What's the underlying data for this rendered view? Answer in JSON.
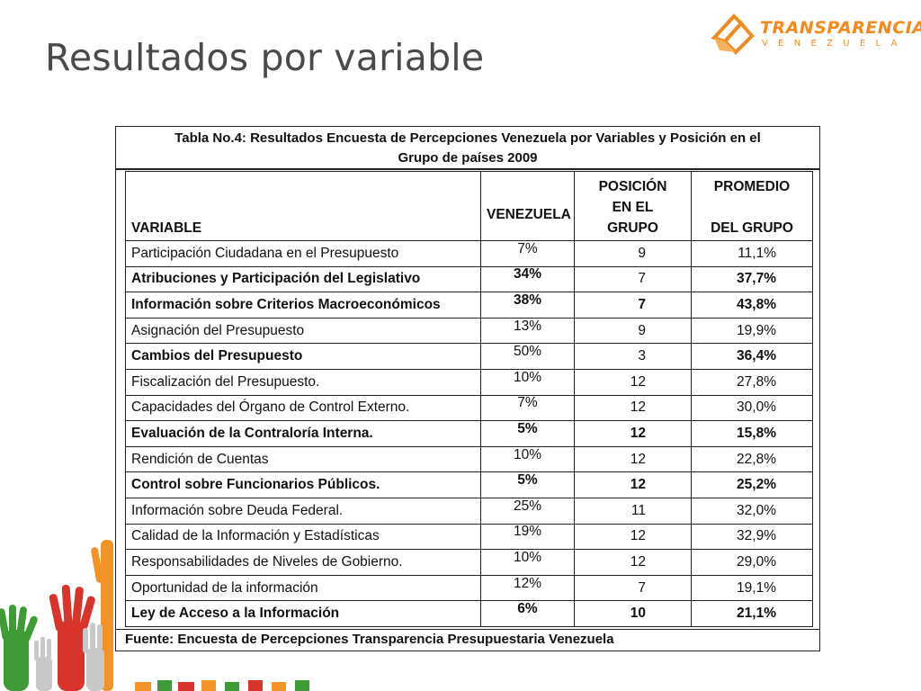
{
  "slide": {
    "title": "Resultados por variable"
  },
  "logo": {
    "name": "TRANSPARENCIA",
    "subtitle": "VENEZUELA",
    "color": "#f28a1e"
  },
  "table": {
    "caption_line1": "Tabla No.4: Resultados  Encuesta de Percepciones Venezuela por Variables y Posición en el",
    "caption_line2": "Grupo de países 2009",
    "headers": {
      "variable": "VARIABLE",
      "venezuela": "VENEZUELA",
      "posicion": [
        "POSICIÓN",
        "EN EL",
        "GRUPO"
      ],
      "promedio": [
        "PROMEDIO",
        "DEL GRUPO"
      ]
    },
    "rows": [
      {
        "variable": "Participación Ciudadana en el Presupuesto",
        "venezuela": "7%",
        "posicion": "9",
        "promedio": "11,1%"
      },
      {
        "variable": "Atribuciones y Participación del Legislativo",
        "venezuela": "34%",
        "posicion": "7",
        "promedio": "37,7%"
      },
      {
        "variable": "Información sobre Criterios Macroeconómicos",
        "venezuela": "38%",
        "posicion": "7",
        "promedio": "43,8%"
      },
      {
        "variable": "Asignación del Presupuesto",
        "venezuela": "13%",
        "posicion": "9",
        "promedio": "19,9%"
      },
      {
        "variable": "Cambios del Presupuesto",
        "venezuela": "50%",
        "posicion": "3",
        "promedio": "36,4%"
      },
      {
        "variable": "Fiscalización del Presupuesto.",
        "venezuela": "10%",
        "posicion": "12",
        "promedio": "27,8%"
      },
      {
        "variable": "Capacidades del Órgano de Control Externo.",
        "venezuela": "7%",
        "posicion": "12",
        "promedio": "30,0%"
      },
      {
        "variable": "Evaluación de la Contraloría Interna.",
        "venezuela": "5%",
        "posicion": "12",
        "promedio": "15,8%"
      },
      {
        "variable": "Rendición de Cuentas",
        "venezuela": "10%",
        "posicion": "12",
        "promedio": "22,8%"
      },
      {
        "variable": "Control sobre Funcionarios Públicos.",
        "venezuela": "5%",
        "posicion": "12",
        "promedio": "25,2%"
      },
      {
        "variable": "Información sobre Deuda Federal.",
        "venezuela": "25%",
        "posicion": "11",
        "promedio": "32,0%"
      },
      {
        "variable": "Calidad de la Información y Estadísticas",
        "venezuela": "19%",
        "posicion": "12",
        "promedio": "32,9%"
      },
      {
        "variable": "Responsabilidades de Niveles de Gobierno.",
        "venezuela": "10%",
        "posicion": "12",
        "promedio": "29,0%"
      },
      {
        "variable": "Oportunidad de la información",
        "venezuela": "12%",
        "posicion": "7",
        "promedio": "19,1%"
      },
      {
        "variable": "Ley de Acceso a la Información",
        "venezuela": "6%",
        "posicion": "10",
        "promedio": "21,1%"
      }
    ],
    "source": "Fuente: Encuesta de Percepciones Transparencia Presupuestaria Venezuela"
  }
}
